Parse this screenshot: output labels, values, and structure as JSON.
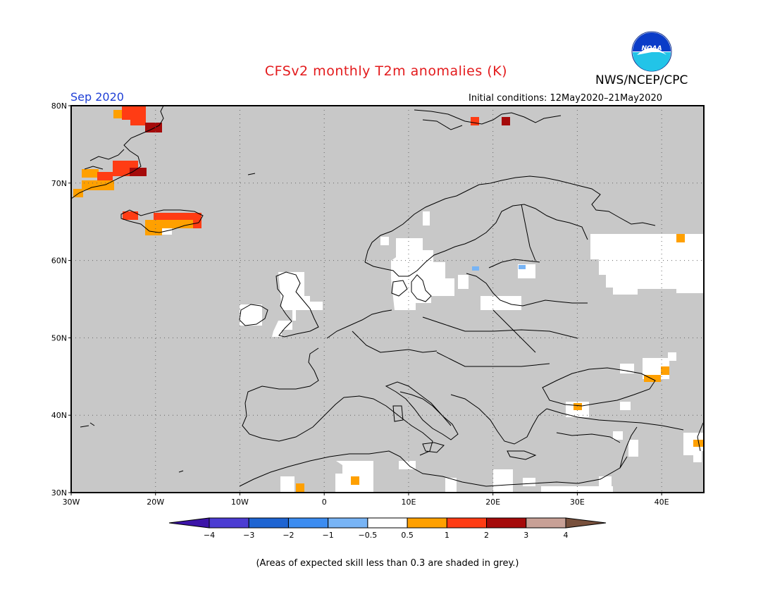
{
  "header": {
    "title": "CFSv2 monthly T2m anomalies (K)",
    "month": "Sep 2020",
    "initial_conditions": "Initial conditions: 12May2020–21May2020",
    "agency": "NWS/NCEP/CPC",
    "logo_text": "NOAA"
  },
  "map": {
    "lat_labels": [
      "80N",
      "70N",
      "60N",
      "50N",
      "40N",
      "30N"
    ],
    "lon_labels": [
      "30W",
      "20W",
      "10W",
      "0",
      "10E",
      "20E",
      "30E",
      "40E"
    ],
    "background_color": "#c8c8c8",
    "grid": true
  },
  "colorbar": {
    "ticks": [
      "−4",
      "−3",
      "−2",
      "−1",
      "−0.5",
      "0.5",
      "1",
      "2",
      "3",
      "4"
    ],
    "colors": [
      "#3c14a8",
      "#4b3cd2",
      "#1e64d2",
      "#3c8cf0",
      "#78b4f5",
      "#ffffff",
      "#ffa000",
      "#ff3c14",
      "#a50a0a",
      "#c8a096",
      "#78503c"
    ]
  },
  "footnote": "(Areas of expected skill less than 0.3 are shaded in grey.)"
}
